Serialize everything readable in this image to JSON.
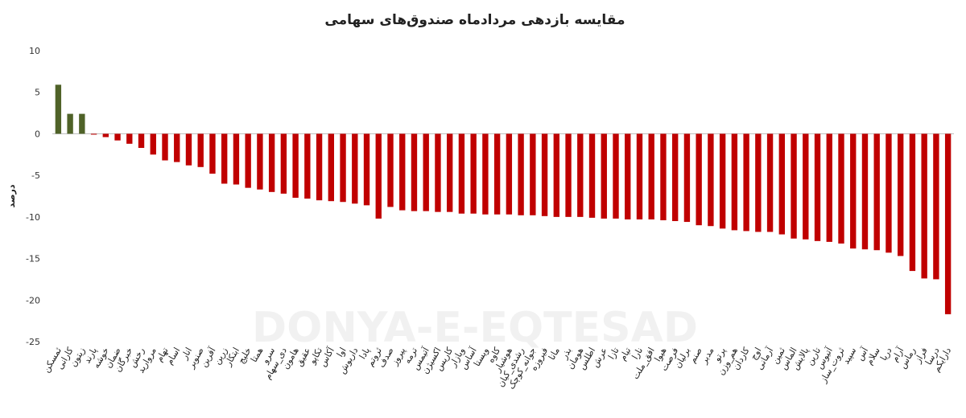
{
  "chart_data": {
    "type": "bar",
    "title": "مقایسه بازدهی مردادماه صندوق‌های سهامی",
    "y_label": "درصد",
    "watermark": "DONYA-E-EQTESAD",
    "categories": [
      "ثمسکن",
      "کارانی",
      "زیتون",
      "پارند",
      "خوشه",
      "ضمان",
      "خبرگان",
      "رخش",
      "مروارید",
      "تهام",
      "اسام",
      "انار",
      "صنوبر",
      "آفرین",
      "زرین",
      "ابتکار",
      "خلیج",
      "همتا",
      "سرو",
      "دی_سهام",
      "هامون",
      "عقیق",
      "تکاپو",
      "آکاس",
      "اوا",
      "داریوش",
      "پادا",
      "ثروتم",
      "صدف",
      "پیروز",
      "ترمه",
      "آتیمس",
      "اکسیژن",
      "کاریس",
      "وبازار",
      "آساس",
      "ویستا",
      "کاوه",
      "هوشیار",
      "رشدی_کیان",
      "جوانه_کوچک",
      "فیروزه",
      "مانا",
      "بذر",
      "هومان",
      "اطلس",
      "عرش",
      "تازا",
      "تیام",
      "نارا",
      "افق_ملت",
      "هیوا",
      "فرصت",
      "برلیان",
      "صنم",
      "مدبر",
      "پرتو",
      "هم_وزن",
      "کاردان",
      "اوج",
      "آرمانی",
      "ثمین",
      "الماس",
      "پالایش",
      "تارین",
      "آتیوس",
      "ثروت_ساز",
      "سپید",
      "آس",
      "سلام",
      "دریا",
      "آرام",
      "رماس",
      "فراز",
      "درسا",
      "دارایکم"
    ],
    "values": [
      5.9,
      2.4,
      2.4,
      -0.1,
      -0.4,
      -0.8,
      -1.2,
      -1.7,
      -2.5,
      -3.2,
      -3.4,
      -3.8,
      -4.0,
      -4.8,
      -6.0,
      -6.1,
      -6.5,
      -6.7,
      -7.0,
      -7.2,
      -7.7,
      -7.8,
      -8.0,
      -8.1,
      -8.2,
      -8.4,
      -8.6,
      -10.2,
      -8.8,
      -9.2,
      -9.3,
      -9.3,
      -9.4,
      -9.4,
      -9.6,
      -9.6,
      -9.7,
      -9.7,
      -9.7,
      -9.8,
      -9.8,
      -9.9,
      -10.0,
      -10.0,
      -10.0,
      -10.1,
      -10.2,
      -10.2,
      -10.3,
      -10.3,
      -10.3,
      -10.4,
      -10.5,
      -10.6,
      -11.0,
      -11.1,
      -11.4,
      -11.6,
      -11.7,
      -11.8,
      -11.8,
      -12.1,
      -12.6,
      -12.7,
      -12.9,
      -13.0,
      -13.2,
      -13.8,
      -13.9,
      -14.0,
      -14.3,
      -14.7,
      -16.5,
      -17.4,
      -17.5,
      -21.7
    ],
    "positive_color": "#4f6228",
    "negative_color": "#c00000",
    "ylim": [
      -25,
      10
    ],
    "yticks": [
      10,
      5,
      0,
      -5,
      -10,
      -15,
      -20,
      -25
    ],
    "grid": false
  }
}
